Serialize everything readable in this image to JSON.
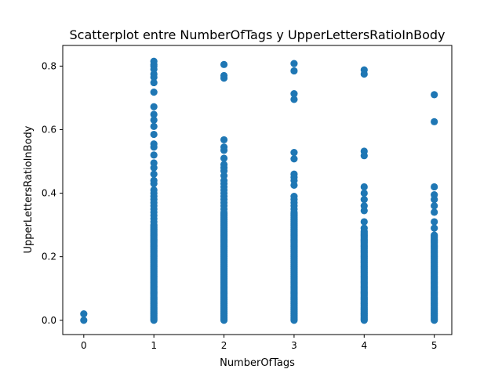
{
  "chart_data": {
    "type": "scatter",
    "title": "Scatterplot entre NumberOfTags y UpperLettersRatioInBody",
    "xlabel": "NumberOfTags",
    "ylabel": "UpperLettersRatioInBody",
    "xlim": [
      -0.3,
      5.25
    ],
    "ylim": [
      -0.045,
      0.865
    ],
    "xticks": [
      0,
      1,
      2,
      3,
      4,
      5
    ],
    "yticks": [
      0.0,
      0.2,
      0.4,
      0.6,
      0.8
    ],
    "xtick_labels": [
      "0",
      "1",
      "2",
      "3",
      "4",
      "5"
    ],
    "ytick_labels": [
      "0.0",
      "0.2",
      "0.4",
      "0.6",
      "0.8"
    ],
    "grid": false,
    "color": "#1f77b4",
    "series": [
      {
        "points": {
          "0": [
            0.0,
            0.02
          ],
          "1": [
            0.815,
            0.805,
            0.8,
            0.79,
            0.775,
            0.765,
            0.748,
            0.718,
            0.672,
            0.648,
            0.63,
            0.61,
            0.585,
            0.555,
            0.545,
            0.52,
            0.495,
            0.48,
            0.46,
            0.44,
            0.43,
            0.41,
            0.4,
            0.39,
            0.38,
            0.37,
            0.36,
            0.35,
            0.34,
            0.33,
            0.32,
            0.31
          ],
          "2": [
            0.805,
            0.77,
            0.762,
            0.568,
            0.545,
            0.535,
            0.51,
            0.49,
            0.48,
            0.47,
            0.455,
            0.44,
            0.43,
            0.42,
            0.41,
            0.4,
            0.39,
            0.38,
            0.37,
            0.36,
            0.35
          ],
          "3": [
            0.808,
            0.785,
            0.713,
            0.695,
            0.528,
            0.508,
            0.46,
            0.45,
            0.44,
            0.425,
            0.39,
            0.38,
            0.37,
            0.36,
            0.35
          ],
          "4": [
            0.788,
            0.775,
            0.532,
            0.518,
            0.42,
            0.4,
            0.38,
            0.36,
            0.345,
            0.31,
            0.29
          ],
          "5": [
            0.71,
            0.625,
            0.42,
            0.395,
            0.38,
            0.36,
            0.34,
            0.31,
            0.29
          ]
        },
        "dense_range": {
          "1": [
            0.0,
            0.3
          ],
          "2": [
            0.0,
            0.34
          ],
          "3": [
            0.0,
            0.34
          ],
          "4": [
            0.0,
            0.28
          ],
          "5": [
            0.0,
            0.27
          ]
        }
      }
    ]
  }
}
